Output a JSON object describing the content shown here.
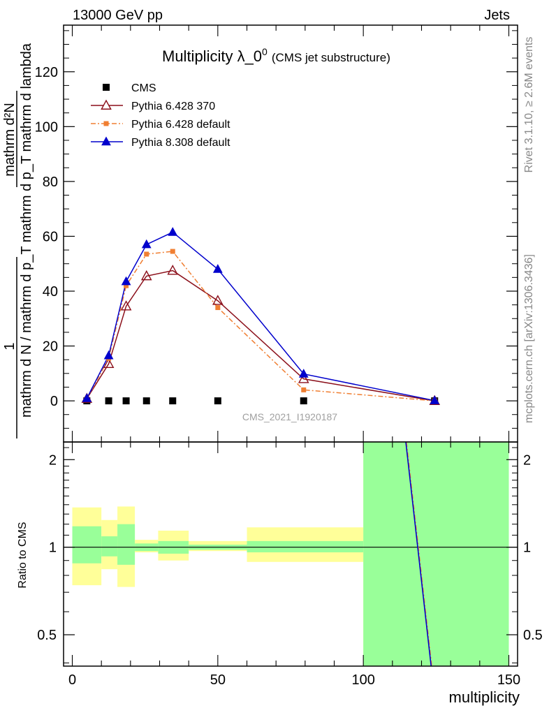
{
  "header": {
    "left": "13000 GeV pp",
    "right": "Jets"
  },
  "title": {
    "main": "Multiplicity λ_0",
    "superscript": "0",
    "sub": "(CMS jet substructure)"
  },
  "side_labels": {
    "rivet": "Rivet 3.1.10, ≥ 2.6M events",
    "mcplots": "mcplots.cern.ch [arXiv:1306.3436]"
  },
  "watermark": "CMS_2021_I1920187",
  "ylabel_main": {
    "one": "1",
    "denominator": "mathrm d N / mathrm d p",
    "sub_T1": "T",
    "denominator2": "mathrm d p",
    "sub_T2": "T",
    "denominator3": " mathrm d lambda",
    "numerator": "mathrm d",
    "sup": "2",
    "numerator2": "N",
    "full_numerator": "mathrm d²N",
    "full_denominator": "mathrm d N / mathrm d p_T mathrm d p_T mathrm d lambda"
  },
  "ylabel_ratio": "Ratio to CMS",
  "xlabel": "multiplicity",
  "colors": {
    "cms": "#000000",
    "pythia6_370": "#8b0f1a",
    "pythia6_default": "#f07f32",
    "pythia8": "#0000cc",
    "band_inner": "#99ff99",
    "band_outer": "#ffff99"
  },
  "chart_data": [
    {
      "type": "line",
      "panel": "main",
      "xlim": [
        -3,
        153
      ],
      "ylim": [
        -15,
        137
      ],
      "x_ticks": [
        0,
        50,
        100,
        150
      ],
      "y_ticks": [
        0,
        20,
        40,
        60,
        80,
        100,
        120
      ],
      "legend_position": "top-left",
      "series": [
        {
          "name": "CMS",
          "marker": "square",
          "x": [
            5,
            12.5,
            18.5,
            25.5,
            34.5,
            50,
            79.5,
            124.5
          ],
          "y": [
            0,
            0,
            0,
            0,
            0,
            0,
            0,
            0
          ]
        },
        {
          "name": "Pythia 6.428 370",
          "marker": "open-triangle",
          "x": [
            5,
            12.5,
            18.5,
            25.5,
            34.5,
            50,
            79.5,
            124.5
          ],
          "y": [
            0.8,
            13.5,
            34.5,
            45.5,
            47.5,
            36.5,
            8,
            0
          ]
        },
        {
          "name": "Pythia 6.428 default",
          "marker": "square-small",
          "dash": "dashdot",
          "x": [
            5,
            12.5,
            18.5,
            25.5,
            34.5,
            50,
            79.5,
            124.5
          ],
          "y": [
            0.7,
            15.5,
            42,
            53.5,
            54.5,
            34,
            4,
            0
          ]
        },
        {
          "name": "Pythia 8.308 default",
          "marker": "filled-triangle",
          "x": [
            5,
            12.5,
            18.5,
            25.5,
            34.5,
            50,
            79.5,
            124.5
          ],
          "y": [
            0.9,
            16.5,
            43.5,
            57,
            61.5,
            48,
            9.8,
            0.1
          ]
        }
      ]
    },
    {
      "type": "area",
      "panel": "ratio",
      "yscale": "log",
      "ylim": [
        0.39,
        2.3
      ],
      "y_ticks": [
        0.5,
        1,
        2
      ],
      "reference": 1,
      "bins": [
        {
          "x0": 0,
          "x1": 10,
          "inner": [
            0.88,
            1.18
          ],
          "outer": [
            0.74,
            1.37
          ]
        },
        {
          "x0": 10,
          "x1": 15.5,
          "inner": [
            0.93,
            1.09
          ],
          "outer": [
            0.84,
            1.24
          ]
        },
        {
          "x0": 15.5,
          "x1": 21.5,
          "inner": [
            0.87,
            1.2
          ],
          "outer": [
            0.73,
            1.38
          ]
        },
        {
          "x0": 21.5,
          "x1": 29.5,
          "inner": [
            0.97,
            1.03
          ],
          "outer": [
            0.96,
            1.06
          ]
        },
        {
          "x0": 29.5,
          "x1": 40,
          "inner": [
            0.95,
            1.05
          ],
          "outer": [
            0.9,
            1.14
          ]
        },
        {
          "x0": 40,
          "x1": 60,
          "inner": [
            0.98,
            1.02
          ],
          "outer": [
            0.97,
            1.05
          ]
        },
        {
          "x0": 60,
          "x1": 100,
          "inner": [
            0.96,
            1.05
          ],
          "outer": [
            0.89,
            1.17
          ]
        },
        {
          "x0": 100,
          "x1": 150,
          "inner": [
            0.39,
            2.3
          ],
          "outer": [
            0.39,
            2.3
          ]
        }
      ],
      "series": [
        {
          "name": "Pythia 6.428 default",
          "x": [
            114.8,
            123.5
          ],
          "y": [
            2.3,
            0.39
          ]
        },
        {
          "name": "Pythia 8.308 default",
          "x": [
            114.6,
            123.3
          ],
          "y": [
            2.3,
            0.39
          ]
        }
      ]
    }
  ]
}
